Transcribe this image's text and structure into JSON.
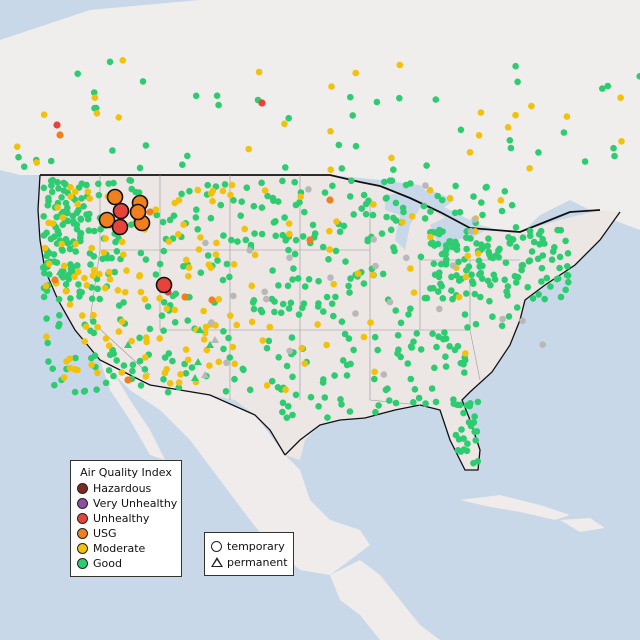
{
  "colors": {
    "ocean": "#c8d8e8",
    "land": "#f1ecea",
    "us_land": "#ebe4e4",
    "hazardous": "#7e2a1e",
    "very_unhealthy": "#8e4fa0",
    "unhealthy": "#e6443a",
    "usg": "#f07f1e",
    "moderate": "#f2c10a",
    "good": "#2ecc71",
    "unknown": "#b8b8b8"
  },
  "legend": {
    "title": "Air Quality Index",
    "items": [
      {
        "label": "Hazardous",
        "color": "#7e2a1e"
      },
      {
        "label": "Very Unhealthy",
        "color": "#8e4fa0"
      },
      {
        "label": "Unhealthy",
        "color": "#e6443a"
      },
      {
        "label": "USG",
        "color": "#f07f1e"
      },
      {
        "label": "Moderate",
        "color": "#f2c10a"
      },
      {
        "label": "Good",
        "color": "#2ecc71"
      }
    ]
  },
  "type_legend": {
    "temporary": "temporary",
    "permanent": "permanent"
  },
  "stations": {
    "good_count_shown": "many",
    "categories": [
      "Good",
      "Moderate",
      "USG",
      "Unhealthy",
      "Unknown"
    ]
  }
}
